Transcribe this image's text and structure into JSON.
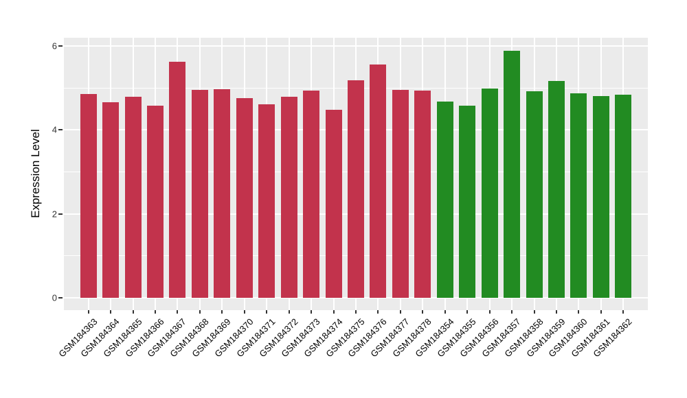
{
  "chart_data": {
    "type": "bar",
    "title": "",
    "xlabel": "",
    "ylabel": "Expression Level",
    "ylim": [
      -0.29,
      6.17
    ],
    "yticks_major": [
      0,
      2,
      4,
      6
    ],
    "yticks_minor": [
      1,
      3,
      5
    ],
    "grid": "on",
    "legend_position": "none",
    "panel_background": "#EBEBEB",
    "grid_color": "#FFFFFF",
    "tick_text_color": "#333333",
    "axis_title_color": "#000000",
    "group_colors": {
      "group1": "#C2334C",
      "group2": "#228B22"
    },
    "categories": [
      "GSM184363",
      "GSM184364",
      "GSM184365",
      "GSM184366",
      "GSM184367",
      "GSM184368",
      "GSM184369",
      "GSM184370",
      "GSM184371",
      "GSM184372",
      "GSM184373",
      "GSM184374",
      "GSM184375",
      "GSM184376",
      "GSM184377",
      "GSM184378",
      "GSM184354",
      "GSM184355",
      "GSM184356",
      "GSM184357",
      "GSM184358",
      "GSM184359",
      "GSM184360",
      "GSM184361",
      "GSM184362"
    ],
    "values": [
      4.85,
      4.65,
      4.78,
      4.58,
      5.62,
      4.95,
      4.97,
      4.75,
      4.6,
      4.78,
      4.94,
      4.48,
      5.18,
      5.55,
      4.95,
      4.94,
      4.68,
      4.58,
      4.99,
      5.88,
      4.92,
      5.16,
      4.87,
      4.8,
      4.83
    ],
    "bar_groups": [
      "group1",
      "group1",
      "group1",
      "group1",
      "group1",
      "group1",
      "group1",
      "group1",
      "group1",
      "group1",
      "group1",
      "group1",
      "group1",
      "group1",
      "group1",
      "group1",
      "group2",
      "group2",
      "group2",
      "group2",
      "group2",
      "group2",
      "group2",
      "group2",
      "group2"
    ]
  }
}
